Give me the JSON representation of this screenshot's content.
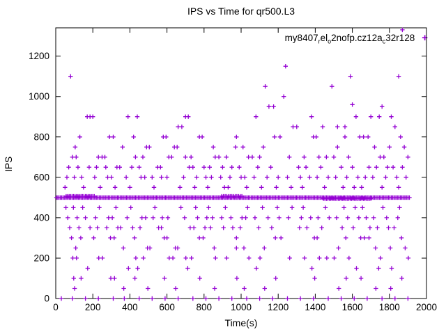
{
  "chart": {
    "title": "IPS vs Time for qr500.L3",
    "xlabel": "Time(s)",
    "ylabel": "IPS"
  },
  "legend": {
    "marker": "+",
    "segments": [
      {
        "text": "my8407"
      },
      {
        "text": "r",
        "sub": true
      },
      {
        "text": "el"
      },
      {
        "text": "o",
        "sub": true
      },
      {
        "text": "2nofp.cz12a"
      },
      {
        "text": "c",
        "sub": true
      },
      {
        "text": "32r128"
      }
    ]
  },
  "chart_data": {
    "type": "scatter",
    "title": "IPS vs Time for qr500.L3",
    "xlabel": "Time(s)",
    "ylabel": "IPS",
    "xlim": [
      0,
      2000
    ],
    "ylim": [
      0,
      1340
    ],
    "xticks": [
      0,
      200,
      400,
      600,
      800,
      1000,
      1200,
      1400,
      1600,
      1800,
      2000
    ],
    "yticks": [
      0,
      200,
      400,
      600,
      800,
      1000,
      1200
    ],
    "grid": false,
    "legend_position": "top-right-inside",
    "series_name": "my8407_rel_o2nofp.cz12a_c32r128",
    "marker": "plus",
    "marker_color": "#9400d3",
    "bands": [
      {
        "y": 500,
        "start": 4,
        "end": 1912,
        "step": 7
      },
      {
        "y": 506,
        "start": 56,
        "end": 214,
        "step": 8
      },
      {
        "y": 494,
        "start": 1444,
        "end": 1700,
        "step": 8
      },
      {
        "y": 506,
        "start": 896,
        "end": 1004,
        "step": 9
      }
    ],
    "levels": [
      {
        "y": 900,
        "x": [
          170,
          185,
          200,
          390,
          440,
          700,
          715,
          1080,
          1380,
          1620,
          1700,
          1745,
          1810
        ]
      },
      {
        "y": 850,
        "x": [
          660,
          680,
          1280,
          1300,
          1440,
          1520,
          1560,
          1830
        ]
      },
      {
        "y": 800,
        "x": [
          130,
          290,
          310,
          420,
          580,
          595,
          775,
          790,
          975,
          1180,
          1210,
          1390,
          1405,
          1560,
          1640,
          1660,
          1685,
          1860
        ]
      },
      {
        "y": 750,
        "x": [
          105,
          360,
          490,
          505,
          640,
          655,
          850,
          970,
          1010,
          1120,
          1520,
          1720,
          1800,
          1880
        ]
      },
      {
        "y": 700,
        "x": [
          90,
          110,
          230,
          250,
          265,
          430,
          470,
          610,
          625,
          700,
          730,
          860,
          880,
          920,
          1040,
          1060,
          1100,
          1260,
          1340,
          1420,
          1460,
          1500,
          1580,
          1750,
          1770,
          1900
        ]
      },
      {
        "y": 650,
        "x": [
          70,
          120,
          180,
          220,
          270,
          330,
          345,
          410,
          450,
          550,
          565,
          720,
          740,
          800,
          830,
          900,
          950,
          990,
          1090,
          1160,
          1310,
          1350,
          1430,
          1540,
          1600,
          1690,
          1730,
          1790,
          1820,
          1870
        ]
      },
      {
        "y": 600,
        "x": [
          60,
          100,
          140,
          210,
          280,
          300,
          380,
          460,
          480,
          520,
          570,
          600,
          690,
          760,
          810,
          840,
          890,
          940,
          1000,
          1020,
          1070,
          1140,
          1200,
          1250,
          1320,
          1370,
          1410,
          1470,
          1510,
          1570,
          1630,
          1670,
          1710,
          1780,
          1840,
          1890
        ]
      },
      {
        "y": 550,
        "x": [
          50,
          150,
          240,
          320,
          400,
          530,
          670,
          750,
          820,
          910,
          930,
          1030,
          1110,
          1190,
          1270,
          1330,
          1450,
          1550,
          1610,
          1650,
          1760,
          1850
        ]
      },
      {
        "y": 450,
        "x": [
          55,
          95,
          145,
          235,
          325,
          405,
          535,
          675,
          755,
          825,
          915,
          1035,
          1115,
          1195,
          1275,
          1335,
          1455,
          1555,
          1615,
          1655,
          1765,
          1855
        ]
      },
      {
        "y": 400,
        "x": [
          65,
          115,
          160,
          215,
          285,
          305,
          385,
          465,
          485,
          525,
          575,
          605,
          695,
          765,
          815,
          845,
          895,
          945,
          1005,
          1025,
          1075,
          1145,
          1205,
          1255,
          1325,
          1375,
          1415,
          1475,
          1515,
          1575,
          1635,
          1675,
          1715,
          1785,
          1845
        ]
      },
      {
        "y": 350,
        "x": [
          75,
          125,
          185,
          225,
          275,
          335,
          350,
          415,
          455,
          555,
          570,
          725,
          745,
          805,
          835,
          905,
          955,
          995,
          1095,
          1165,
          1315,
          1355,
          1435,
          1545,
          1605,
          1695,
          1735,
          1795,
          1825
        ]
      },
      {
        "y": 300,
        "x": [
          85,
          135,
          205,
          295,
          315,
          425,
          585,
          600,
          775,
          795,
          975,
          1185,
          1215,
          1395,
          1410,
          1565,
          1645,
          1665,
          1690,
          1865
        ]
      },
      {
        "y": 250,
        "x": [
          108,
          365,
          495,
          508,
          645,
          658,
          855,
          975,
          1015,
          1125,
          1525,
          1725,
          1805,
          1885
        ]
      },
      {
        "y": 200,
        "x": [
          92,
          112,
          232,
          252,
          432,
          472,
          612,
          632,
          702,
          732,
          862,
          922,
          1042,
          1102,
          1262,
          1342,
          1422,
          1462,
          1502,
          1582,
          1752,
          1902
        ]
      },
      {
        "y": 150,
        "x": [
          172,
          392,
          442,
          712,
          1082,
          1382,
          1622,
          1742,
          1812
        ]
      },
      {
        "y": 100,
        "x": [
          97,
          137,
          297,
          317,
          427,
          587,
          777,
          977,
          1187,
          1397,
          1567,
          1647,
          1867
        ]
      },
      {
        "y": 50,
        "x": [
          102,
          367,
          497,
          647,
          857,
          1017,
          1127,
          1527,
          1727,
          1807
        ]
      },
      {
        "y": 0,
        "x": [
          30,
          90,
          160,
          230,
          310,
          370,
          450,
          520,
          590,
          660,
          740,
          810,
          880,
          950,
          1030,
          1100,
          1170,
          1250,
          1320,
          1390,
          1470,
          1540,
          1610,
          1680,
          1760,
          1830,
          1900
        ]
      }
    ],
    "extra_points": [
      [
        80,
        1100
      ],
      [
        1590,
        1100
      ],
      [
        1850,
        1100
      ],
      [
        1240,
        1150
      ],
      [
        1130,
        1050
      ],
      [
        1490,
        1050
      ],
      [
        1230,
        1000
      ],
      [
        1600,
        960
      ],
      [
        1150,
        950
      ],
      [
        1175,
        950
      ],
      [
        1760,
        950
      ],
      [
        1870,
        1330
      ]
    ]
  }
}
